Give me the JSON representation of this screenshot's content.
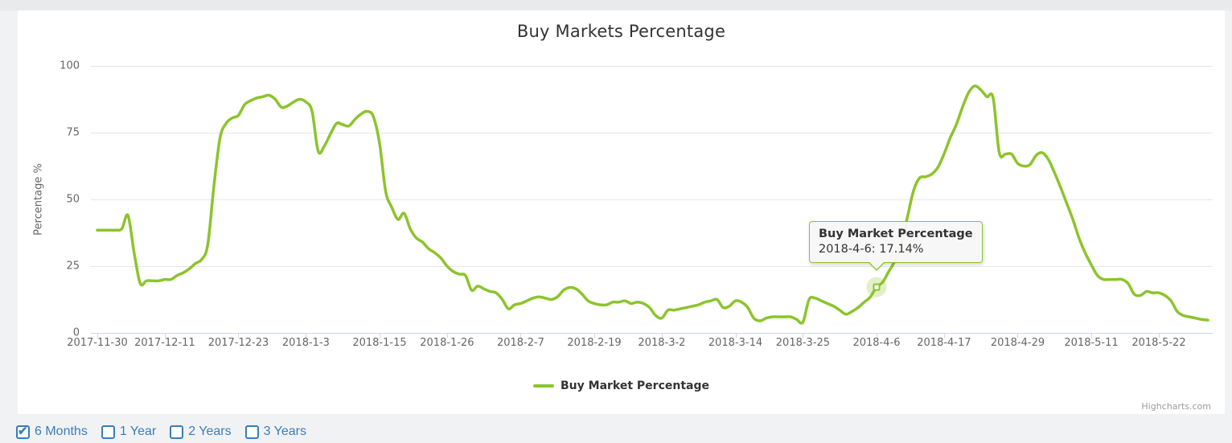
{
  "page": {
    "background": "#f1f2f3",
    "panel_background": "#ffffff"
  },
  "tooltip": {
    "title": "Buy Market Percentage",
    "line": "2018-4-6: 17.14%"
  },
  "legend": {
    "label": "Buy Market Percentage"
  },
  "credits": {
    "label": "Highcharts.com"
  },
  "filters": {
    "accent": "#3a7cc3",
    "items": [
      {
        "label": "6 Months",
        "checked": true
      },
      {
        "label": "1 Year",
        "checked": false
      },
      {
        "label": "2 Years",
        "checked": false
      },
      {
        "label": "3 Years",
        "checked": false
      }
    ]
  },
  "chart_data": {
    "type": "line",
    "title": "Buy Markets Percentage",
    "xlabel": "",
    "ylabel": "Percentage %",
    "ylim": [
      0,
      100
    ],
    "y_ticks": [
      0,
      25,
      50,
      75,
      100
    ],
    "grid": "horizontal",
    "grid_color": "#e6e6e6",
    "axis_line_color": "#ccd6eb",
    "tick_label_color": "#666666",
    "title_color": "#333333",
    "legend_position": "bottom-center",
    "x_ticks": [
      {
        "label": "2017-11-30",
        "day": 0
      },
      {
        "label": "2017-12-11",
        "day": 11
      },
      {
        "label": "2017-12-23",
        "day": 23
      },
      {
        "label": "2018-1-3",
        "day": 34
      },
      {
        "label": "2018-1-15",
        "day": 46
      },
      {
        "label": "2018-1-26",
        "day": 57
      },
      {
        "label": "2018-2-7",
        "day": 69
      },
      {
        "label": "2018-2-19",
        "day": 81
      },
      {
        "label": "2018-3-2",
        "day": 92
      },
      {
        "label": "2018-3-14",
        "day": 104
      },
      {
        "label": "2018-3-25",
        "day": 115
      },
      {
        "label": "2018-4-6",
        "day": 127
      },
      {
        "label": "2018-4-17",
        "day": 138
      },
      {
        "label": "2018-4-29",
        "day": 150
      },
      {
        "label": "2018-5-11",
        "day": 162
      },
      {
        "label": "2018-5-22",
        "day": 173
      }
    ],
    "total_days": 181,
    "series": [
      {
        "name": "Buy Market Percentage",
        "color": "#8cc42c",
        "start_date": "2017-11-30",
        "step_days": 1,
        "values": [
          38.5,
          38.5,
          38.5,
          38.5,
          39,
          44,
          30,
          18.5,
          19.5,
          19.5,
          19.5,
          20,
          20,
          21.5,
          22.5,
          24,
          26,
          27.5,
          33,
          55,
          73,
          78.5,
          80.5,
          81.5,
          85.5,
          87,
          88,
          88.5,
          89,
          87.5,
          84.5,
          85,
          86.5,
          87.5,
          86.5,
          83,
          68,
          70,
          74.5,
          78.5,
          78,
          77.5,
          80,
          82,
          83,
          81,
          71,
          53,
          47,
          42.5,
          44.8,
          39,
          35.5,
          34,
          31.5,
          30,
          28,
          25,
          23,
          22,
          21.5,
          16,
          17.5,
          16.5,
          15.5,
          15,
          12.5,
          9,
          10.5,
          11,
          12,
          13,
          13.5,
          13,
          12.5,
          13.5,
          16,
          17,
          16.5,
          14.5,
          12,
          11,
          10.5,
          10.5,
          11.5,
          11.5,
          12,
          11,
          11.5,
          11,
          9.5,
          6.5,
          5.5,
          8.5,
          8.5,
          9,
          9.5,
          10,
          10.5,
          11.5,
          12,
          12.5,
          9.5,
          10,
          12,
          11.5,
          9.5,
          5.5,
          4.5,
          5.5,
          6,
          6,
          6,
          6,
          5,
          4,
          12.5,
          13,
          12,
          11,
          10,
          8.5,
          7,
          8,
          9.5,
          11.5,
          13.5,
          17.14,
          19,
          23,
          27,
          33,
          43,
          53,
          58,
          58.5,
          59.5,
          62,
          67,
          73,
          78,
          84.5,
          90,
          92.5,
          91,
          88.5,
          88,
          67.5,
          67,
          67,
          63.5,
          62.5,
          63,
          66.5,
          67.5,
          65,
          60,
          54.5,
          48.5,
          42.5,
          35.5,
          30,
          25.5,
          21.5,
          20,
          20,
          20,
          20,
          18.5,
          14.5,
          14,
          15.5,
          15,
          15,
          14,
          12,
          8,
          6.5,
          6,
          5.5,
          5,
          4.8
        ]
      }
    ],
    "highlight": {
      "series": "Buy Market Percentage",
      "date": "2018-4-6",
      "day": 127,
      "value": 17.14
    }
  }
}
